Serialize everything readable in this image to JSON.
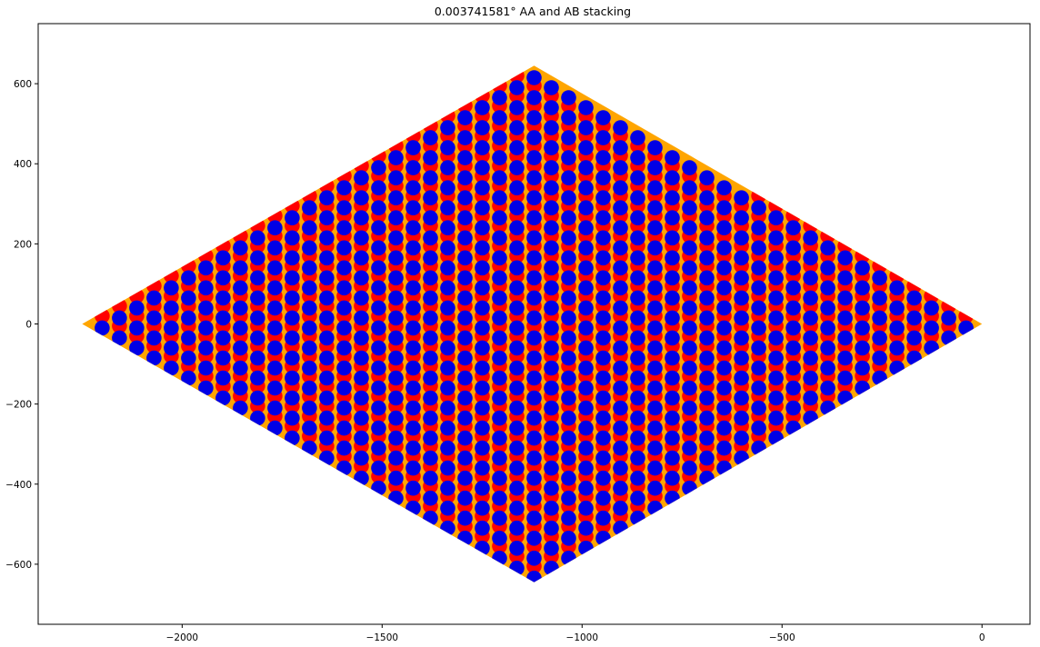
{
  "chart_data": {
    "type": "scatter",
    "title": "0.003741581° AA and AB stacking",
    "xlabel": "",
    "ylabel": "",
    "xlim": [
      -2360,
      120
    ],
    "ylim": [
      -750,
      750
    ],
    "xticks": [
      -2000,
      -1500,
      -1000,
      -500,
      0
    ],
    "yticks": [
      -600,
      -400,
      -200,
      0,
      200,
      400,
      600
    ],
    "xtick_labels": [
      "−2000",
      "−1500",
      "−1000",
      "−500",
      "0"
    ],
    "ytick_labels": [
      "−600",
      "−400",
      "−200",
      "0",
      "200",
      "400",
      "600"
    ],
    "grid": false,
    "legend": "none",
    "region": {
      "shape": "rhombus",
      "vertices": [
        [
          -2250,
          0
        ],
        [
          -1120,
          645
        ],
        [
          0,
          0
        ],
        [
          -1120,
          -645
        ]
      ],
      "color": "#ffa500"
    },
    "series": [
      {
        "color": "#ff0000",
        "lattice": {
          "origin": [
            -1120,
            645
          ],
          "a1": [
            -43.2,
            -25
          ],
          "a2": [
            43.2,
            -25
          ],
          "grid_size": 26
        }
      },
      {
        "color": "#0000e6",
        "lattice": {
          "origin": [
            -1120,
            615
          ],
          "a1": [
            -43.2,
            -25
          ],
          "a2": [
            43.2,
            -25
          ],
          "grid_size": 26
        }
      }
    ]
  }
}
